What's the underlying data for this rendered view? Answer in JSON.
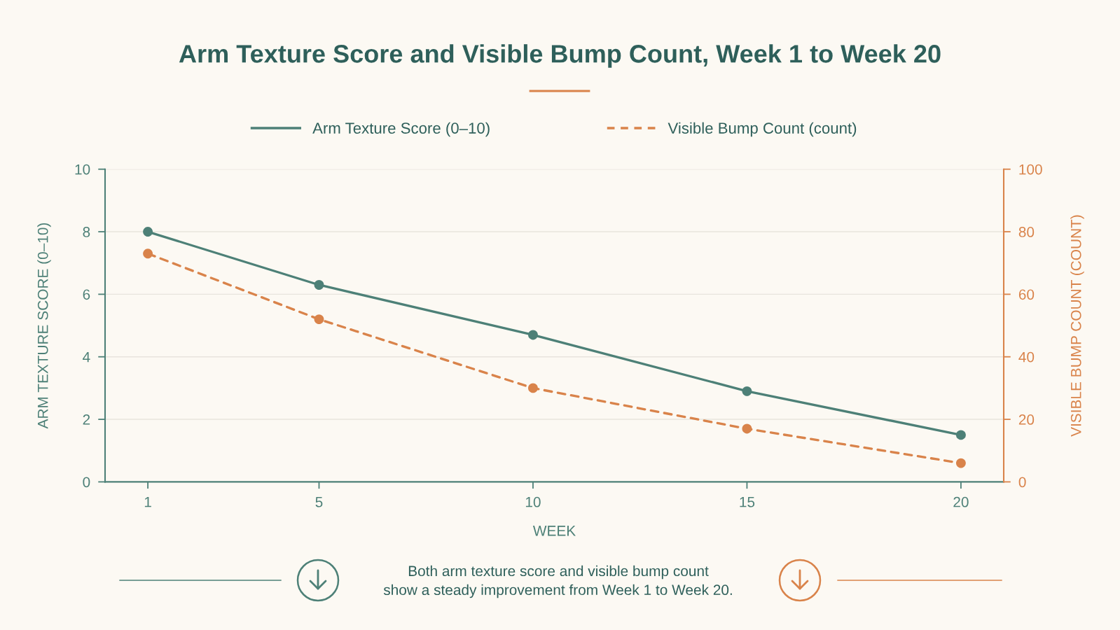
{
  "chart_data": {
    "type": "line",
    "title": "Arm Texture Score and Visible Bump Count, Week 1 to Week 20",
    "xlabel": "WEEK",
    "ylabel": "ARM TEXTURE SCORE (0–10)",
    "y2label": "VISIBLE BUMP COUNT (COUNT)",
    "x": [
      1,
      5,
      10,
      15,
      20
    ],
    "xlim": [
      0,
      21
    ],
    "xticks": [
      1,
      5,
      10,
      15,
      20
    ],
    "ylim": [
      0,
      10
    ],
    "yticks": [
      0,
      2,
      4,
      6,
      8,
      10
    ],
    "y2lim": [
      0,
      100
    ],
    "y2ticks": [
      0,
      20,
      40,
      60,
      80,
      100
    ],
    "series": [
      {
        "name": "Arm Texture Score (0–10)",
        "color": "#4d8077",
        "values": [
          8.0,
          6.3,
          4.7,
          2.9,
          1.5
        ],
        "line_style": "solid"
      },
      {
        "name": "Visible Bump Count (count)",
        "color": "#d9834a",
        "values": [
          73,
          52,
          30,
          17,
          6
        ],
        "axis": "y2",
        "line_style": "dashed"
      }
    ],
    "marker": "circle",
    "grid": "y",
    "legend": "top",
    "annotations": [
      "Both arm texture score and visible bump count\nshow a steady improvement from Week 1 to Week 20."
    ]
  }
}
